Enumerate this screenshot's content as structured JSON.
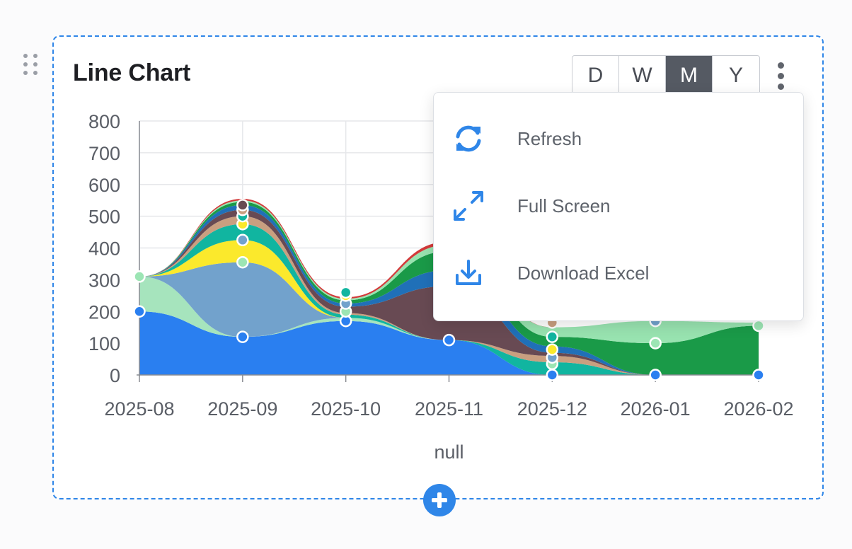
{
  "widget": {
    "title": "Line Chart",
    "period_buttons": [
      "D",
      "W",
      "M",
      "Y"
    ],
    "active_period": "M"
  },
  "menu": {
    "items": [
      {
        "label": "Refresh",
        "icon": "refresh-icon"
      },
      {
        "label": "Full Screen",
        "icon": "expand-icon"
      },
      {
        "label": "Download Excel",
        "icon": "download-icon"
      }
    ]
  },
  "colors": {
    "accent": "#2f86e8",
    "active_button": "#555a63"
  },
  "chart_data": {
    "type": "area",
    "stacked": true,
    "smooth": true,
    "xlabel": "null",
    "ylabel": "",
    "ylim": [
      0,
      800
    ],
    "yticks": [
      0,
      100,
      200,
      300,
      400,
      500,
      600,
      700,
      800
    ],
    "categories": [
      "2025-08",
      "2025-09",
      "2025-10",
      "2025-11",
      "2025-12",
      "2026-01",
      "2026-02"
    ],
    "grid": true,
    "series": [
      {
        "color": "#2a7ff0",
        "values": [
          200,
          120,
          170,
          110,
          0,
          0,
          0
        ]
      },
      {
        "color": "#a6e4bd",
        "values": [
          110,
          0,
          10,
          0,
          0,
          0,
          0
        ]
      },
      {
        "color": "#72a2cc",
        "values": [
          0,
          235,
          0,
          0,
          0,
          0,
          0
        ]
      },
      {
        "color": "#fbe92c",
        "values": [
          0,
          70,
          0,
          0,
          0,
          0,
          0
        ]
      },
      {
        "color": "#11b5a0",
        "values": [
          0,
          50,
          10,
          0,
          40,
          0,
          0
        ]
      },
      {
        "color": "#c99f80",
        "values": [
          0,
          25,
          5,
          0,
          20,
          0,
          0
        ]
      },
      {
        "color": "#684a53",
        "values": [
          0,
          20,
          20,
          170,
          10,
          0,
          0
        ]
      },
      {
        "color": "#2070b8",
        "values": [
          0,
          15,
          10,
          50,
          20,
          0,
          0
        ]
      },
      {
        "color": "#1a9a48",
        "values": [
          0,
          10,
          10,
          60,
          30,
          100,
          155
        ]
      },
      {
        "color": "#98e3b0",
        "values": [
          0,
          5,
          5,
          20,
          30,
          70,
          10
        ]
      },
      {
        "color": "#d23a3a",
        "values": [
          0,
          5,
          5,
          10,
          0,
          0,
          0
        ]
      }
    ],
    "markers": {
      "2025-08": [
        200,
        310
      ],
      "2025-09": [
        120,
        355,
        425,
        475,
        500,
        520,
        535
      ],
      "2025-10": [
        170,
        200,
        225,
        250,
        260
      ],
      "2025-11": [
        110
      ],
      "2025-12": [
        0,
        35,
        55,
        80,
        120,
        165
      ],
      "2026-01": [
        0,
        100,
        170
      ],
      "2026-02": [
        0,
        155
      ]
    }
  }
}
